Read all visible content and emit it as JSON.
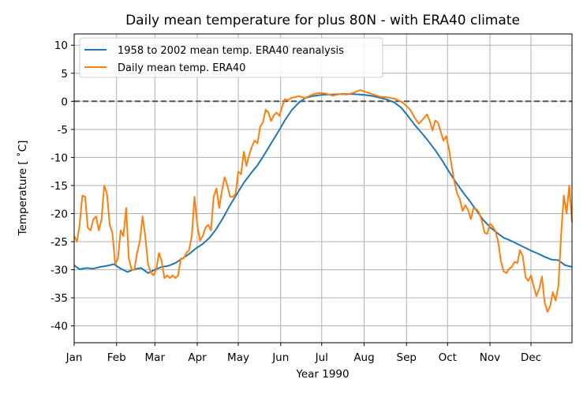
{
  "chart_data": {
    "type": "line",
    "title": "Daily mean temperature for plus 80N - with ERA40 climate",
    "xlabel": "Year 1990",
    "ylabel": "Temperature [$^\\circ$C]",
    "ylabel_display": "Temperature [ ˚C]",
    "x_unit": "day of year",
    "xlim": [
      1,
      365
    ],
    "ylim": [
      -43,
      12
    ],
    "x_ticks": [
      {
        "label": "Jan",
        "day": 1
      },
      {
        "label": "Feb",
        "day": 32
      },
      {
        "label": "Mar",
        "day": 60
      },
      {
        "label": "Apr",
        "day": 91
      },
      {
        "label": "May",
        "day": 121
      },
      {
        "label": "Jun",
        "day": 152
      },
      {
        "label": "Jul",
        "day": 182
      },
      {
        "label": "Aug",
        "day": 213
      },
      {
        "label": "Sep",
        "day": 244
      },
      {
        "label": "Oct",
        "day": 274
      },
      {
        "label": "Nov",
        "day": 305
      },
      {
        "label": "Dec",
        "day": 335
      }
    ],
    "y_ticks": [
      10,
      5,
      0,
      -5,
      -10,
      -15,
      -20,
      -25,
      -30,
      -35,
      -40
    ],
    "grid": true,
    "legend_position": "top-left",
    "reference_line": {
      "y": 0,
      "style": "dashed",
      "color": "#555555"
    },
    "series": [
      {
        "name": "1958 to 2002 mean temp. ERA40 reanalysis",
        "color": "#1f77b4",
        "x": [
          1,
          5,
          10,
          15,
          20,
          25,
          30,
          35,
          40,
          45,
          50,
          55,
          60,
          65,
          70,
          75,
          80,
          85,
          90,
          95,
          100,
          105,
          110,
          115,
          120,
          125,
          130,
          135,
          140,
          145,
          150,
          155,
          160,
          165,
          170,
          175,
          180,
          185,
          190,
          195,
          200,
          205,
          210,
          215,
          220,
          225,
          230,
          235,
          240,
          245,
          250,
          255,
          260,
          265,
          270,
          275,
          280,
          285,
          290,
          295,
          300,
          305,
          310,
          315,
          320,
          325,
          330,
          335,
          340,
          345,
          350,
          355,
          360,
          365
        ],
        "y": [
          -29.2,
          -29.9,
          -29.7,
          -29.8,
          -29.5,
          -29.3,
          -29.0,
          -29.8,
          -30.4,
          -29.9,
          -29.7,
          -30.6,
          -30.0,
          -29.5,
          -29.3,
          -28.8,
          -28.0,
          -27.2,
          -26.2,
          -25.4,
          -24.3,
          -22.7,
          -20.7,
          -18.5,
          -16.5,
          -14.5,
          -12.9,
          -11.4,
          -9.5,
          -7.5,
          -5.5,
          -3.4,
          -1.6,
          -0.3,
          0.6,
          0.9,
          1.1,
          1.2,
          1.2,
          1.3,
          1.3,
          1.3,
          1.2,
          1.1,
          0.9,
          0.6,
          0.3,
          -0.2,
          -1.1,
          -2.6,
          -4.2,
          -5.6,
          -7.1,
          -8.7,
          -10.5,
          -12.5,
          -14.4,
          -16.1,
          -17.7,
          -19.4,
          -21.1,
          -22.4,
          -23.4,
          -24.3,
          -24.8,
          -25.4,
          -26.0,
          -26.6,
          -27.1,
          -27.7,
          -28.2,
          -28.3,
          -29.2,
          -29.5
        ]
      },
      {
        "name": "Daily mean temp. ERA40",
        "color": "#ff7f0e",
        "x": [
          1,
          3,
          5,
          7,
          9,
          11,
          13,
          15,
          17,
          19,
          21,
          23,
          25,
          27,
          29,
          31,
          33,
          35,
          37,
          39,
          41,
          43,
          45,
          47,
          49,
          51,
          53,
          55,
          57,
          59,
          61,
          63,
          65,
          67,
          69,
          71,
          73,
          75,
          77,
          79,
          81,
          83,
          85,
          87,
          89,
          91,
          93,
          95,
          97,
          99,
          101,
          103,
          105,
          107,
          109,
          111,
          113,
          115,
          117,
          119,
          121,
          123,
          125,
          127,
          129,
          131,
          133,
          135,
          137,
          139,
          141,
          143,
          145,
          147,
          149,
          151,
          153,
          155,
          157,
          160,
          165,
          170,
          175,
          180,
          185,
          190,
          195,
          200,
          205,
          210,
          215,
          220,
          225,
          230,
          235,
          238,
          241,
          244,
          247,
          250,
          253,
          256,
          259,
          261,
          263,
          265,
          267,
          269,
          271,
          273,
          275,
          277,
          279,
          281,
          283,
          285,
          287,
          289,
          291,
          293,
          295,
          297,
          299,
          301,
          303,
          305,
          307,
          309,
          311,
          313,
          315,
          317,
          319,
          321,
          323,
          325,
          327,
          329,
          331,
          333,
          335,
          337,
          339,
          341,
          343,
          345,
          347,
          349,
          351,
          353,
          355,
          357,
          359,
          361,
          363,
          365
        ],
        "y": [
          -24.0,
          -25.0,
          -22.0,
          -16.8,
          -17.0,
          -22.5,
          -23.0,
          -21.0,
          -20.5,
          -23.0,
          -21.0,
          -15.0,
          -16.5,
          -22.0,
          -23.5,
          -29.0,
          -28.0,
          -23.0,
          -24.0,
          -19.0,
          -28.0,
          -30.0,
          -30.0,
          -27.0,
          -25.0,
          -20.5,
          -24.0,
          -29.0,
          -30.5,
          -31.0,
          -30.0,
          -27.0,
          -28.5,
          -31.5,
          -31.0,
          -31.5,
          -31.0,
          -31.5,
          -31.0,
          -28.0,
          -28.0,
          -27.0,
          -26.5,
          -24.0,
          -17.0,
          -22.0,
          -24.8,
          -24.0,
          -22.5,
          -22.0,
          -23.0,
          -17.0,
          -15.5,
          -19.0,
          -16.0,
          -13.5,
          -15.0,
          -17.0,
          -17.0,
          -16.5,
          -12.5,
          -13.0,
          -9.0,
          -11.5,
          -9.5,
          -8.0,
          -7.0,
          -7.5,
          -4.5,
          -3.8,
          -1.5,
          -2.0,
          -3.5,
          -2.5,
          -2.0,
          -2.6,
          -1.0,
          0.4,
          0.2,
          0.6,
          0.9,
          0.6,
          1.2,
          1.5,
          1.4,
          1.0,
          1.3,
          1.2,
          1.5,
          2.0,
          1.6,
          1.2,
          0.8,
          0.7,
          0.5,
          0.2,
          -0.2,
          -0.8,
          -1.6,
          -2.9,
          -4.0,
          -3.2,
          -2.3,
          -3.5,
          -5.2,
          -3.4,
          -3.8,
          -5.4,
          -7.0,
          -6.2,
          -8.5,
          -11.5,
          -14.3,
          -16.4,
          -17.5,
          -19.5,
          -18.5,
          -19.4,
          -21.0,
          -19.0,
          -19.2,
          -19.8,
          -21.2,
          -23.4,
          -23.6,
          -21.8,
          -22.3,
          -23.1,
          -25.0,
          -28.5,
          -30.3,
          -30.6,
          -29.8,
          -29.5,
          -28.6,
          -28.8,
          -26.5,
          -27.6,
          -31.3,
          -32.0,
          -31.0,
          -33.0,
          -34.7,
          -33.4,
          -31.2,
          -35.8,
          -37.5,
          -36.5,
          -34.0,
          -35.5,
          -33.0,
          -24.0,
          -16.8,
          -20.0,
          -15.0,
          -21.5
        ]
      }
    ]
  }
}
